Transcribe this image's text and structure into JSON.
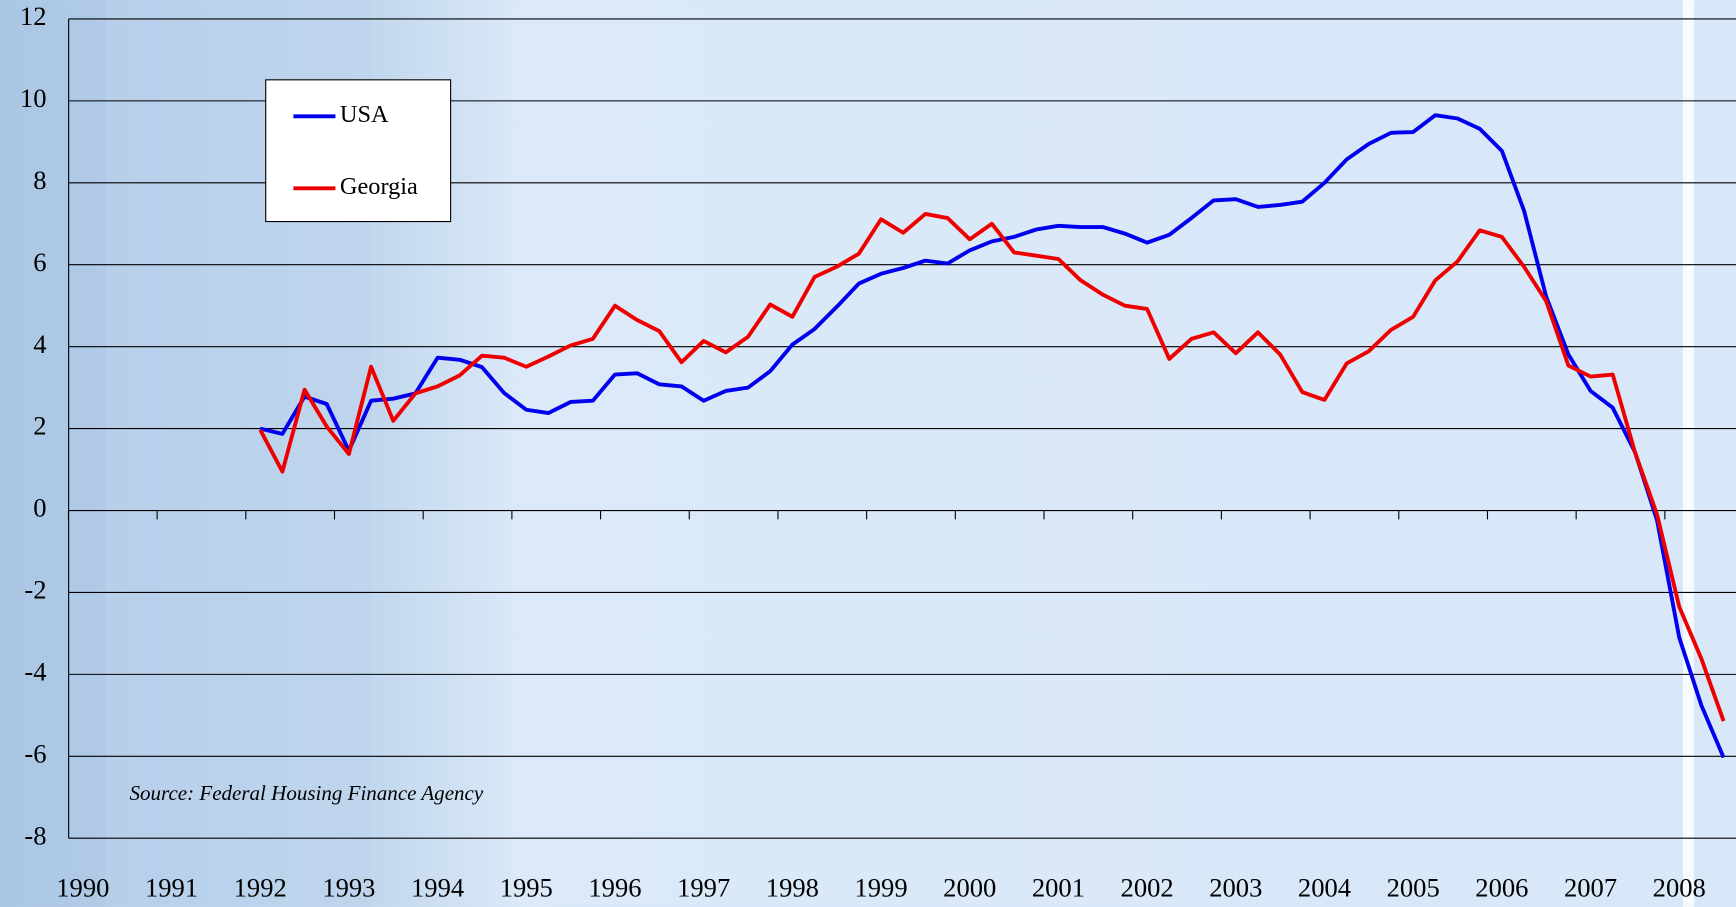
{
  "chart_data": {
    "type": "line",
    "annotation": "Source: Federal Housing Finance Agency",
    "x": [
      1992,
      1992.25,
      1992.5,
      1992.75,
      1993,
      1993.25,
      1993.5,
      1993.75,
      1994,
      1994.25,
      1994.5,
      1994.75,
      1995,
      1995.25,
      1995.5,
      1995.75,
      1996,
      1996.25,
      1996.5,
      1996.75,
      1997,
      1997.25,
      1997.5,
      1997.75,
      1998,
      1998.25,
      1998.5,
      1998.75,
      1999,
      1999.25,
      1999.5,
      1999.75,
      2000,
      2000.25,
      2000.5,
      2000.75,
      2001,
      2001.25,
      2001.5,
      2001.75,
      2002,
      2002.25,
      2002.5,
      2002.75,
      2003,
      2003.25,
      2003.5,
      2003.75,
      2004,
      2004.25,
      2004.5,
      2004.75,
      2005,
      2005.25,
      2005.5,
      2005.75,
      2006,
      2006.25,
      2006.5,
      2006.75,
      2007,
      2007.25,
      2007.5,
      2007.75,
      2008,
      2008.25,
      2008.5
    ],
    "series": [
      {
        "name": "USA",
        "color": "#0000ee",
        "values": [
          2.0,
          1.87,
          2.78,
          2.6,
          1.46,
          2.68,
          2.73,
          2.86,
          3.73,
          3.68,
          3.5,
          2.87,
          2.46,
          2.38,
          2.65,
          2.68,
          3.32,
          3.35,
          3.08,
          3.03,
          2.68,
          2.92,
          3.0,
          3.4,
          4.05,
          4.43,
          4.97,
          5.54,
          5.78,
          5.92,
          6.1,
          6.03,
          6.35,
          6.57,
          6.68,
          6.86,
          6.95,
          6.92,
          6.92,
          6.76,
          6.54,
          6.73,
          7.14,
          7.57,
          7.6,
          7.41,
          7.46,
          7.54,
          8.0,
          8.57,
          8.95,
          9.22,
          9.24,
          9.65,
          9.57,
          9.32,
          8.78,
          7.32,
          5.22,
          3.81,
          2.92,
          2.51,
          1.43,
          -0.24,
          -3.1,
          -4.76,
          -6.03
        ]
      },
      {
        "name": "Georgia",
        "color": "#ee0000",
        "values": [
          1.97,
          0.95,
          2.95,
          2.05,
          1.38,
          3.51,
          2.19,
          2.86,
          3.03,
          3.3,
          3.78,
          3.73,
          3.51,
          3.76,
          4.03,
          4.19,
          5.0,
          4.65,
          4.38,
          3.62,
          4.14,
          3.86,
          4.24,
          5.03,
          4.73,
          5.7,
          5.95,
          6.27,
          7.11,
          6.78,
          7.24,
          7.14,
          6.62,
          7.0,
          6.3,
          6.22,
          6.14,
          5.62,
          5.27,
          5.0,
          4.92,
          3.7,
          4.19,
          4.35,
          3.84,
          4.35,
          3.81,
          2.89,
          2.7,
          3.59,
          3.89,
          4.41,
          4.73,
          5.62,
          6.08,
          6.84,
          6.68,
          5.95,
          5.11,
          3.54,
          3.27,
          3.32,
          1.43,
          -0.1,
          -2.35,
          -3.62,
          -5.14
        ]
      }
    ],
    "xlim": [
      1989.84,
      2008.64
    ],
    "xticks": [
      1990,
      1991,
      1992,
      1993,
      1994,
      1995,
      1996,
      1997,
      1998,
      1999,
      2000,
      2001,
      2002,
      2003,
      2004,
      2005,
      2006,
      2007,
      2008
    ],
    "ylim": [
      -8,
      12
    ],
    "yticks": [
      -8,
      -6,
      -4,
      -2,
      0,
      2,
      4,
      6,
      8,
      10,
      12
    ],
    "grid": true,
    "legend": "upper left"
  }
}
